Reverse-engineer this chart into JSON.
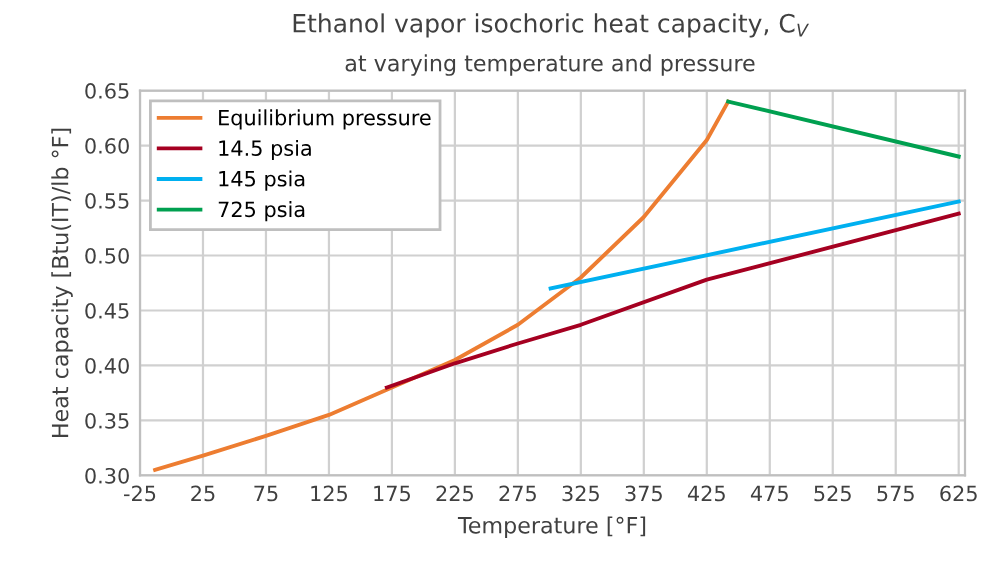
{
  "chart_data": {
    "type": "line",
    "title": "Ethanol vapor isochoric heat capacity, C$_{V}$",
    "subtitle": "at varying temperature and pressure",
    "xlabel": "Temperature [°F]",
    "ylabel": "Heat capacity [Btu(IT)/lb °F]",
    "series": [
      {
        "name": "Equilibrium pressure",
        "color": "#ed7d31",
        "x": [
          -13,
          25,
          75,
          125,
          175,
          225,
          275,
          325,
          375,
          425,
          442
        ],
        "values": [
          0.305,
          0.318,
          0.336,
          0.355,
          0.38,
          0.405,
          0.437,
          0.48,
          0.535,
          0.605,
          0.64
        ]
      },
      {
        "name": "14.5 psia",
        "color": "#a50021",
        "x": [
          171,
          225,
          275,
          325,
          425,
          625
        ],
        "values": [
          0.38,
          0.402,
          0.42,
          0.437,
          0.478,
          0.538
        ]
      },
      {
        "name": "145 psia",
        "color": "#00b0f0",
        "x": [
          301,
          625
        ],
        "values": [
          0.47,
          0.549
        ]
      },
      {
        "name": "725 psia",
        "color": "#00a050",
        "x": [
          442,
          625
        ],
        "values": [
          0.64,
          0.59
        ]
      }
    ],
    "xlim": [
      -25,
      630
    ],
    "xticks": [
      -25,
      25,
      75,
      125,
      175,
      225,
      275,
      325,
      375,
      425,
      475,
      525,
      575,
      625
    ],
    "ylim": [
      0.3,
      0.65
    ],
    "yticks": [
      {
        "value": 0.3,
        "label": "0.30"
      },
      {
        "value": 0.35,
        "label": "0.35"
      },
      {
        "value": 0.4,
        "label": "0.40"
      },
      {
        "value": 0.45,
        "label": "0.45"
      },
      {
        "value": 0.5,
        "label": "0.50"
      },
      {
        "value": 0.55,
        "label": "0.55"
      },
      {
        "value": 0.6,
        "label": "0.60"
      },
      {
        "value": 0.65,
        "label": "0.65"
      }
    ],
    "grid": true,
    "legend": "top left",
    "marker": "none",
    "line_style": "solid"
  }
}
